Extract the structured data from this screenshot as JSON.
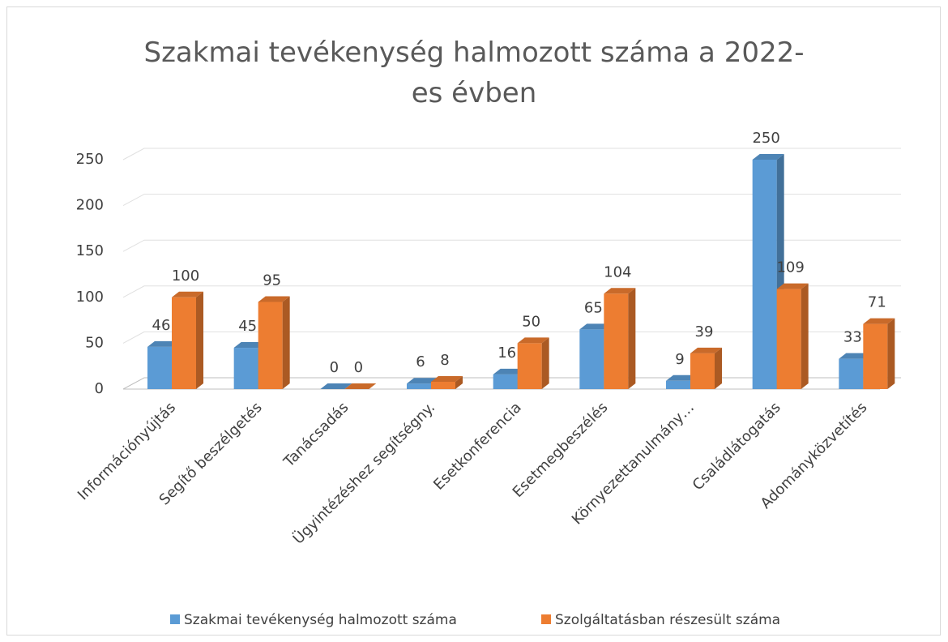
{
  "chart_data": {
    "type": "bar3d",
    "title": "Szakmai tevékenység halmozott száma a 2022-es évben",
    "categories": [
      "Információnyújtás",
      "Segítő beszélgetés",
      "Tanácsadás",
      "Ügyintézéshez segítségny.",
      "Esetkonferencia",
      "Esetmegbeszélés",
      "Környezettanulmány…",
      "Családlátogatás",
      "Adományközvetítés"
    ],
    "series": [
      {
        "name": "Szakmai tevékenység halmozott száma",
        "color": "#5b9bd5",
        "values": [
          46,
          45,
          0,
          6,
          16,
          65,
          9,
          250,
          33
        ]
      },
      {
        "name": "Szolgáltatásban részesült száma",
        "color": "#ed7d31",
        "values": [
          100,
          95,
          0,
          8,
          50,
          104,
          39,
          109,
          71
        ]
      }
    ],
    "ylim": [
      0,
      250
    ],
    "yticks": [
      0,
      50,
      100,
      150,
      200,
      250
    ],
    "grid": true,
    "legend": "bottom"
  }
}
